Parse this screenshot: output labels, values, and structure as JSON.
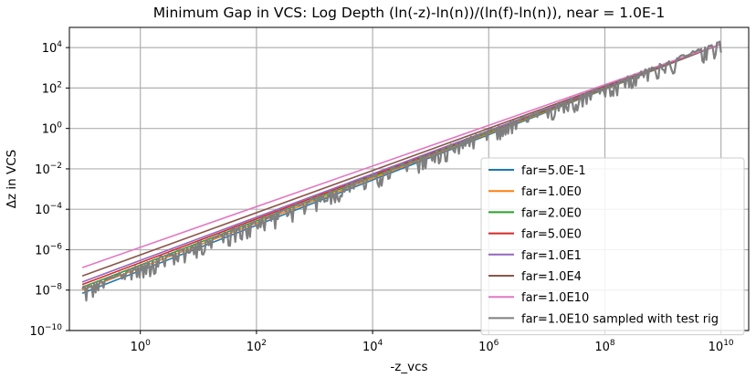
{
  "chart_data": {
    "type": "line",
    "title": "Minimum Gap in VCS: Log Depth (ln(-z)-ln(n))/(ln(f)-ln(n)), near = 1.0E-1",
    "xlabel": "-z_vcs",
    "ylabel": "Δz in VCS",
    "xscale": "log",
    "yscale": "log",
    "xlim": [
      0.06,
      30000000000
    ],
    "ylim": [
      1e-10,
      100000
    ],
    "grid": true,
    "legend_position": "lower-right",
    "x_ticks": [
      {
        "base": "10",
        "exp": "0",
        "value": 1
      },
      {
        "base": "10",
        "exp": "2",
        "value": 100
      },
      {
        "base": "10",
        "exp": "4",
        "value": 10000
      },
      {
        "base": "10",
        "exp": "6",
        "value": 1000000
      },
      {
        "base": "10",
        "exp": "8",
        "value": 100000000
      },
      {
        "base": "10",
        "exp": "10",
        "value": 10000000000
      }
    ],
    "y_ticks": [
      {
        "base": "10",
        "exp": "4",
        "value": 10000
      },
      {
        "base": "10",
        "exp": "2",
        "value": 100
      },
      {
        "base": "10",
        "exp": "0",
        "value": 1
      },
      {
        "base": "10",
        "exp": "−2",
        "value": 0.01
      },
      {
        "base": "10",
        "exp": "−4",
        "value": 0.0001
      },
      {
        "base": "10",
        "exp": "−6",
        "value": 1e-06
      },
      {
        "base": "10",
        "exp": "−8",
        "value": 1e-08
      },
      {
        "base": "10",
        "exp": "−10",
        "value": 1e-10
      }
    ],
    "series": [
      {
        "name": "far=5.0E-1",
        "color": "#1f77b4",
        "x_range": [
          0.1,
          10000000000
        ],
        "y_range": [
          7e-09,
          15000
        ],
        "noisy": false
      },
      {
        "name": "far=1.0E0",
        "color": "#ff7f0e",
        "x_range": [
          0.1,
          10000000000
        ],
        "y_range": [
          1e-08,
          15000
        ],
        "noisy": false
      },
      {
        "name": "far=2.0E0",
        "color": "#2ca02c",
        "x_range": [
          0.1,
          10000000000
        ],
        "y_range": [
          1.4e-08,
          15000
        ],
        "noisy": false
      },
      {
        "name": "far=5.0E0",
        "color": "#d62728",
        "x_range": [
          0.1,
          10000000000
        ],
        "y_range": [
          1.9e-08,
          15000
        ],
        "noisy": false
      },
      {
        "name": "far=1.0E1",
        "color": "#9467bd",
        "x_range": [
          0.1,
          10000000000
        ],
        "y_range": [
          2.5e-08,
          15000
        ],
        "noisy": false
      },
      {
        "name": "far=1.0E4",
        "color": "#8c564b",
        "x_range": [
          0.1,
          10000000000
        ],
        "y_range": [
          5e-08,
          15000
        ],
        "noisy": false
      },
      {
        "name": "far=1.0E10",
        "color": "#e377c2",
        "x_range": [
          0.1,
          10000000000
        ],
        "y_range": [
          1.3e-07,
          15000
        ],
        "noisy": false
      },
      {
        "name": "far=1.0E10 sampled with test rig",
        "color": "#7f7f7f",
        "x_range": [
          0.1,
          10000000000
        ],
        "y_range": [
          1.2e-08,
          20000
        ],
        "noisy": true,
        "dip_factor": 0.3
      }
    ]
  }
}
